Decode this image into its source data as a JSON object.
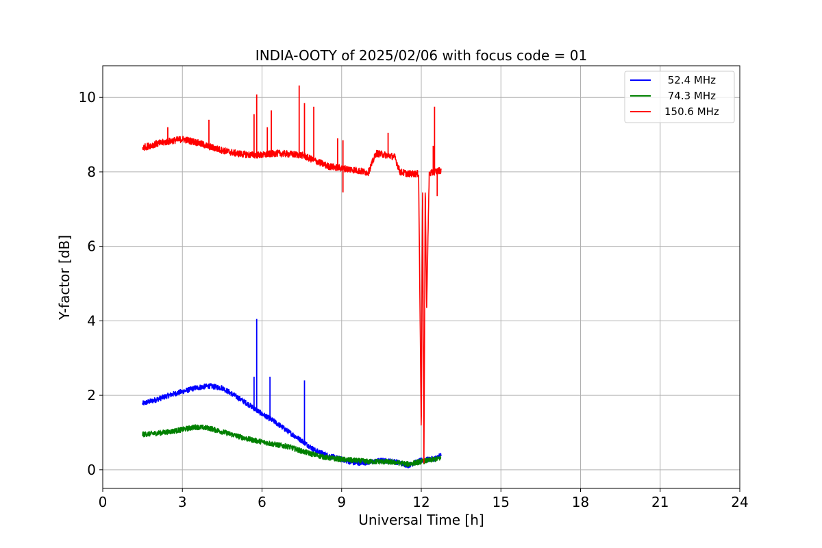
{
  "chart_data": {
    "type": "line",
    "title": "INDIA-OOTY of 2025/02/06 with focus code = 01",
    "xlabel": "Universal Time [h]",
    "ylabel": "Y-factor [dB]",
    "xlim": [
      0,
      24
    ],
    "ylim": [
      -0.5,
      10.85
    ],
    "xticks": [
      0,
      3,
      6,
      9,
      12,
      15,
      18,
      21,
      24
    ],
    "yticks": [
      0,
      2,
      4,
      6,
      8,
      10
    ],
    "grid": true,
    "legend_position": "top-right",
    "series": [
      {
        "name": " 52.4 MHz",
        "color": "#0000ff",
        "x": [
          1.5,
          2.0,
          2.5,
          3.0,
          3.5,
          4.0,
          4.5,
          5.0,
          5.5,
          6.0,
          6.5,
          7.0,
          7.5,
          8.0,
          8.5,
          9.0,
          9.5,
          10.0,
          10.5,
          11.0,
          11.5,
          12.0,
          12.5,
          12.75
        ],
        "y": [
          1.78,
          1.88,
          2.0,
          2.1,
          2.2,
          2.25,
          2.2,
          1.98,
          1.75,
          1.5,
          1.28,
          1.02,
          0.78,
          0.52,
          0.38,
          0.28,
          0.18,
          0.2,
          0.25,
          0.22,
          0.12,
          0.25,
          0.3,
          0.4
        ],
        "spikes": [
          [
            5.7,
            2.5
          ],
          [
            5.8,
            4.05
          ],
          [
            6.3,
            2.5
          ],
          [
            7.6,
            2.4
          ]
        ]
      },
      {
        "name": " 74.3 MHz",
        "color": "#008000",
        "x": [
          1.5,
          2.0,
          2.5,
          3.0,
          3.5,
          4.0,
          4.5,
          5.0,
          5.5,
          6.0,
          6.5,
          7.0,
          7.5,
          8.0,
          8.5,
          9.0,
          9.5,
          10.0,
          10.5,
          11.0,
          11.5,
          12.0,
          12.5,
          12.75
        ],
        "y": [
          0.95,
          0.98,
          1.02,
          1.08,
          1.15,
          1.12,
          1.02,
          0.92,
          0.82,
          0.75,
          0.68,
          0.62,
          0.5,
          0.4,
          0.32,
          0.28,
          0.25,
          0.22,
          0.22,
          0.2,
          0.15,
          0.22,
          0.28,
          0.32
        ],
        "spikes": []
      },
      {
        "name": "150.6 MHz",
        "color": "#ff0000",
        "x": [
          1.5,
          2.0,
          2.5,
          3.0,
          3.5,
          4.0,
          4.5,
          5.0,
          5.5,
          6.0,
          6.5,
          7.0,
          7.5,
          8.0,
          8.5,
          9.0,
          9.5,
          10.0,
          10.3,
          10.7,
          11.0,
          11.2,
          11.5,
          11.9,
          12.0,
          12.05,
          12.1,
          12.15,
          12.2,
          12.3,
          12.5,
          12.75
        ],
        "y": [
          8.65,
          8.75,
          8.82,
          8.88,
          8.8,
          8.68,
          8.58,
          8.5,
          8.46,
          8.45,
          8.5,
          8.48,
          8.45,
          8.3,
          8.15,
          8.1,
          8.05,
          7.98,
          8.5,
          8.45,
          8.4,
          8.0,
          7.95,
          7.95,
          1.0,
          7.8,
          0.1,
          7.7,
          4.3,
          7.95,
          8.0,
          8.05
        ],
        "spikes": [
          [
            2.45,
            9.2
          ],
          [
            4.0,
            9.4
          ],
          [
            5.7,
            9.55
          ],
          [
            5.8,
            10.08
          ],
          [
            6.2,
            9.2
          ],
          [
            6.35,
            9.65
          ],
          [
            7.4,
            10.32
          ],
          [
            7.6,
            9.85
          ],
          [
            7.95,
            9.75
          ],
          [
            8.85,
            8.9
          ],
          [
            9.05,
            7.45
          ],
          [
            9.05,
            8.85
          ],
          [
            10.75,
            9.05
          ],
          [
            12.45,
            8.7
          ],
          [
            12.5,
            9.75
          ],
          [
            12.6,
            7.35
          ]
        ]
      }
    ]
  }
}
